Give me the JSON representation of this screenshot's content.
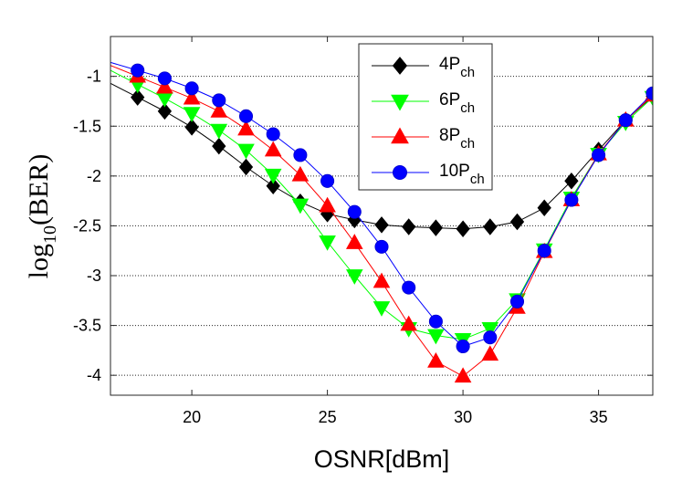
{
  "chart_data": {
    "type": "line",
    "title": "",
    "xlabel": "OSNR[dBm]",
    "ylabel": {
      "prefix": "log",
      "subscript": "10",
      "suffix": "(BER)"
    },
    "xlim": [
      17,
      37
    ],
    "ylim": [
      -4.2,
      -0.6
    ],
    "xticks": [
      20,
      25,
      30,
      35
    ],
    "yticks": [
      -1,
      -1.5,
      -2,
      -2.5,
      -3,
      -3.5,
      -4
    ],
    "grid": "horizontal dotted at y ticks",
    "legend_position": "top-center",
    "x": [
      18,
      19,
      20,
      21,
      22,
      23,
      24,
      25,
      26,
      27,
      28,
      29,
      30,
      31,
      32,
      33,
      34,
      35,
      36,
      37
    ],
    "series": [
      {
        "name": "4P",
        "name_sub": "ch",
        "color": "#000000",
        "marker": "diamond",
        "values": [
          -1.21,
          -1.35,
          -1.51,
          -1.7,
          -1.91,
          -2.1,
          -2.26,
          -2.38,
          -2.44,
          -2.49,
          -2.51,
          -2.52,
          -2.53,
          -2.51,
          -2.46,
          -2.32,
          -2.05,
          -1.74,
          -1.44,
          -1.2
        ]
      },
      {
        "name": "6P",
        "name_sub": "ch",
        "color": "#00ff00",
        "marker": "triangle-down",
        "values": [
          -1.08,
          -1.22,
          -1.37,
          -1.54,
          -1.74,
          -1.99,
          -2.29,
          -2.66,
          -3.0,
          -3.32,
          -3.53,
          -3.6,
          -3.64,
          -3.53,
          -3.24,
          -2.74,
          -2.22,
          -1.78,
          -1.46,
          -1.21
        ]
      },
      {
        "name": "8P",
        "name_sub": "ch",
        "color": "#ff0000",
        "marker": "triangle-up",
        "values": [
          -1.0,
          -1.11,
          -1.22,
          -1.35,
          -1.53,
          -1.74,
          -1.99,
          -2.3,
          -2.67,
          -3.06,
          -3.49,
          -3.86,
          -4.01,
          -3.79,
          -3.32,
          -2.76,
          -2.24,
          -1.78,
          -1.44,
          -1.19
        ]
      },
      {
        "name": "10P",
        "name_sub": "ch",
        "color": "#0000ff",
        "marker": "circle",
        "values": [
          -0.94,
          -1.02,
          -1.12,
          -1.24,
          -1.4,
          -1.58,
          -1.79,
          -2.05,
          -2.36,
          -2.71,
          -3.12,
          -3.46,
          -3.71,
          -3.62,
          -3.26,
          -2.75,
          -2.24,
          -1.79,
          -1.44,
          -1.17
        ]
      }
    ]
  }
}
